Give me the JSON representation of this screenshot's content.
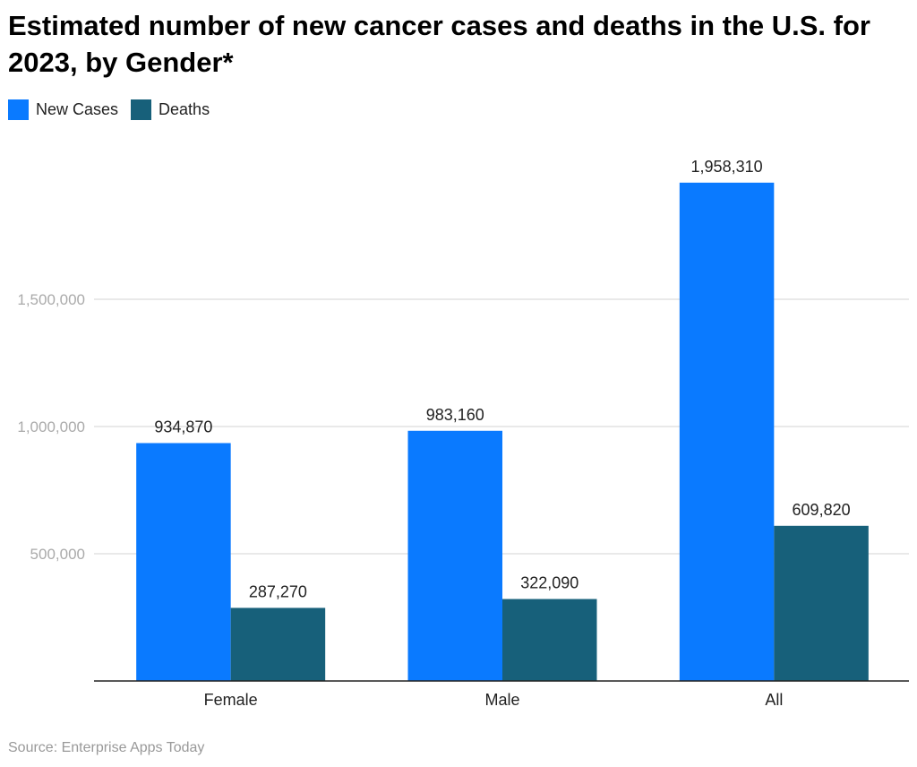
{
  "chart_data": {
    "type": "bar",
    "title": "Estimated number of new cancer cases and deaths in the U.S. for 2023, by Gender*",
    "categories": [
      "Female",
      "Male",
      "All"
    ],
    "series": [
      {
        "name": "New Cases",
        "color": "#0a7aff",
        "values": [
          934870,
          983160,
          1958310
        ],
        "labels": [
          "934,870",
          "983,160",
          "1,958,310"
        ]
      },
      {
        "name": "Deaths",
        "color": "#17607a",
        "values": [
          287270,
          322090,
          609820
        ],
        "labels": [
          "287,270",
          "322,090",
          "609,820"
        ]
      }
    ],
    "yticks": [
      500000,
      1000000,
      1500000
    ],
    "ytick_labels": [
      "500,000",
      "1,000,000",
      "1,500,000"
    ],
    "ylim": [
      0,
      2000000
    ],
    "grid": true,
    "legend": "top-left",
    "xlabel": "",
    "ylabel": "",
    "source": "Source: Enterprise Apps Today"
  }
}
